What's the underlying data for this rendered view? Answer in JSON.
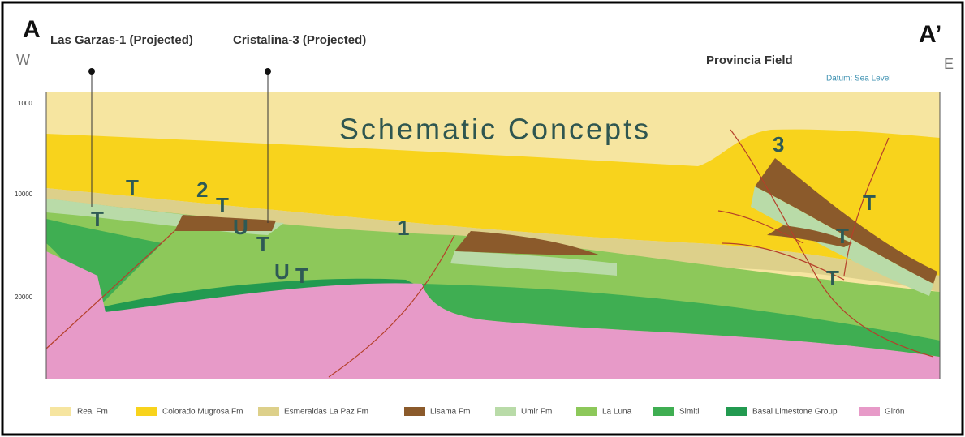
{
  "section": {
    "end_left": "A",
    "end_right": "A’",
    "west": "W",
    "east": "E",
    "wells": [
      "Las Garzas-1 (Projected)",
      "Cristalina-3 (Projected)"
    ],
    "field": "Provincia Field",
    "datum": "Datum: Sea Level",
    "depth_labels": [
      "1000",
      "10000",
      "20000"
    ],
    "title": "Schematic Concepts",
    "markers": [
      "T",
      "T",
      "2",
      "T",
      "U",
      "T",
      "U",
      "T",
      "1",
      "3",
      "T",
      "T",
      "T"
    ]
  },
  "legend": [
    "Real Fm",
    "Colorado Mugrosa Fm",
    "Esmeraldas La Paz Fm",
    "Lisama Fm",
    "Umir Fm",
    "La Luna",
    "Simiti",
    "Basal Limestone Group",
    "Girón"
  ]
}
